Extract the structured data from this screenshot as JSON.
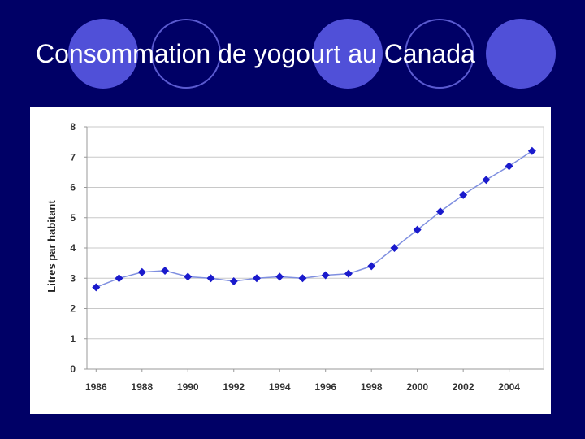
{
  "slide": {
    "title": "Consommation de yogourt au Canada",
    "background_color": "#000066",
    "accent_color": "#5050d8"
  },
  "chart_data": {
    "type": "line",
    "title": "",
    "xlabel": "",
    "ylabel": "Litres par habitant",
    "x": [
      1986,
      1987,
      1988,
      1989,
      1990,
      1991,
      1992,
      1993,
      1994,
      1995,
      1996,
      1997,
      1998,
      1999,
      2000,
      2001,
      2002,
      2003,
      2004,
      2005
    ],
    "values": [
      2.7,
      3.0,
      3.2,
      3.25,
      3.05,
      3.0,
      2.9,
      3.0,
      3.05,
      3.0,
      3.1,
      3.15,
      3.4,
      4.0,
      4.6,
      5.2,
      5.75,
      6.25,
      6.7,
      7.2
    ],
    "ylim": [
      0,
      8
    ],
    "yticks": [
      0,
      1,
      2,
      3,
      4,
      5,
      6,
      7,
      8
    ],
    "xticks": [
      1986,
      1988,
      1990,
      1992,
      1994,
      1996,
      1998,
      2000,
      2002,
      2004
    ],
    "xlim": [
      1985.6,
      2005.5
    ],
    "grid": true,
    "series_color": "#1a1acc",
    "line_color": "#7f8fe0"
  }
}
